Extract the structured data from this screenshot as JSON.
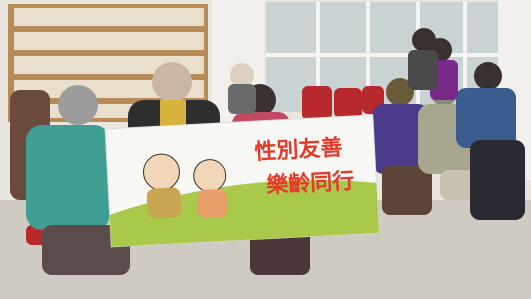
{
  "banner": {
    "line1": "性別友善",
    "line2": "樂齡同行"
  }
}
